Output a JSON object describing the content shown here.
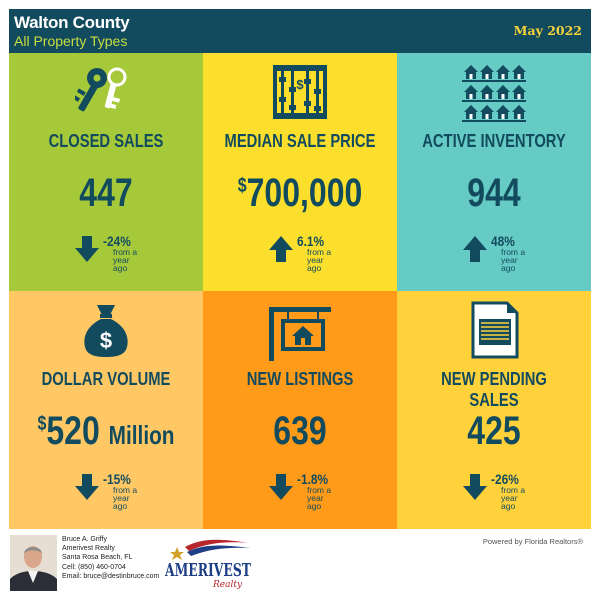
{
  "header": {
    "title": "Walton County",
    "subtitle": "All Property Types",
    "date": "May 2022"
  },
  "tiles": [
    {
      "label": "CLOSED SALES",
      "value": "447",
      "currency": "",
      "suffix": "",
      "change": "-24%",
      "direction": "down",
      "change_note_1": "from a",
      "change_note_2": "year ago",
      "icon": "keys-icon",
      "color": "#a6c93a"
    },
    {
      "label": "MEDIAN SALE PRICE",
      "value": "700,000",
      "currency": "$",
      "suffix": "",
      "change": "6.1%",
      "direction": "up",
      "change_note_1": "from a",
      "change_note_2": "year ago",
      "icon": "abacus-icon",
      "color": "#fbdf2c"
    },
    {
      "label": "ACTIVE INVENTORY",
      "value": "944",
      "currency": "",
      "suffix": "",
      "change": "48%",
      "direction": "up",
      "change_note_1": "from a",
      "change_note_2": "year ago",
      "icon": "houses-grid-icon",
      "color": "#66cbc4"
    },
    {
      "label": "DOLLAR VOLUME",
      "value": "520",
      "currency": "$",
      "suffix": "Million",
      "change": "-15%",
      "direction": "down",
      "change_note_1": "from a",
      "change_note_2": "year ago",
      "icon": "money-bag-icon",
      "color": "#ffc865"
    },
    {
      "label": "NEW LISTINGS",
      "value": "639",
      "currency": "",
      "suffix": "",
      "change": "-1.8%",
      "direction": "down",
      "change_note_1": "from a",
      "change_note_2": "year ago",
      "icon": "listing-sign-icon",
      "color": "#ff9b18"
    },
    {
      "label": "NEW PENDING SALES",
      "value": "425",
      "currency": "",
      "suffix": "",
      "change": "-26%",
      "direction": "down",
      "change_note_1": "from a",
      "change_note_2": "year ago",
      "icon": "document-icon",
      "color": "#ffd23b"
    }
  ],
  "agent": {
    "name": "Bruce A. Griffy",
    "company": "Amerivest Realty",
    "location": "Santa Rosa Beach, FL",
    "cell": "Cell: (850) 460-0704",
    "email": "Email: bruce@destinbruce.com"
  },
  "logo": {
    "name": "AMERIVEST",
    "tagline": "Realty"
  },
  "powered_by": "Powered by Florida Realtors®",
  "colors": {
    "navy": "#134b5e",
    "header_subtitle": "#c9de3f",
    "header_date": "#f5d33a"
  }
}
